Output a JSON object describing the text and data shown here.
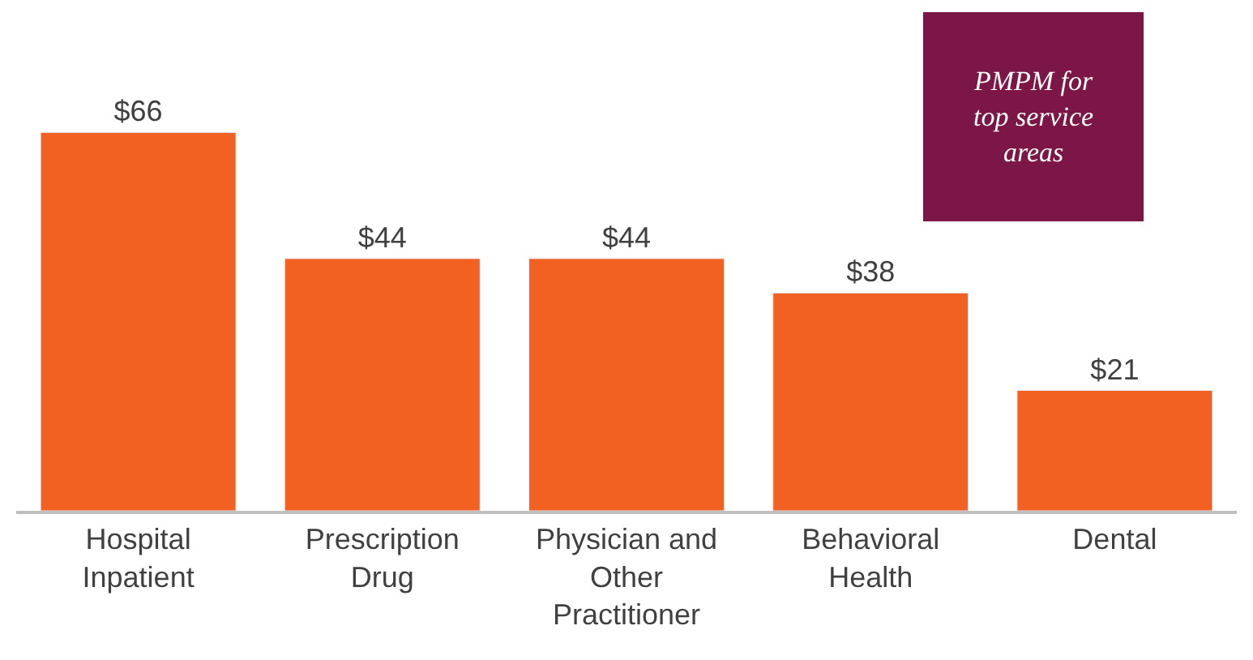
{
  "chart_data": {
    "type": "bar",
    "categories": [
      "Hospital Inpatient",
      "Prescription Drug",
      "Physician and Other Practitioner",
      "Behavioral Health",
      "Dental"
    ],
    "values": [
      66,
      44,
      44,
      38,
      21
    ],
    "value_labels": [
      "$66",
      "$44",
      "$44",
      "$38",
      "$21"
    ],
    "color": "#f26122",
    "annotations": [
      "PMPM for top service areas"
    ]
  }
}
